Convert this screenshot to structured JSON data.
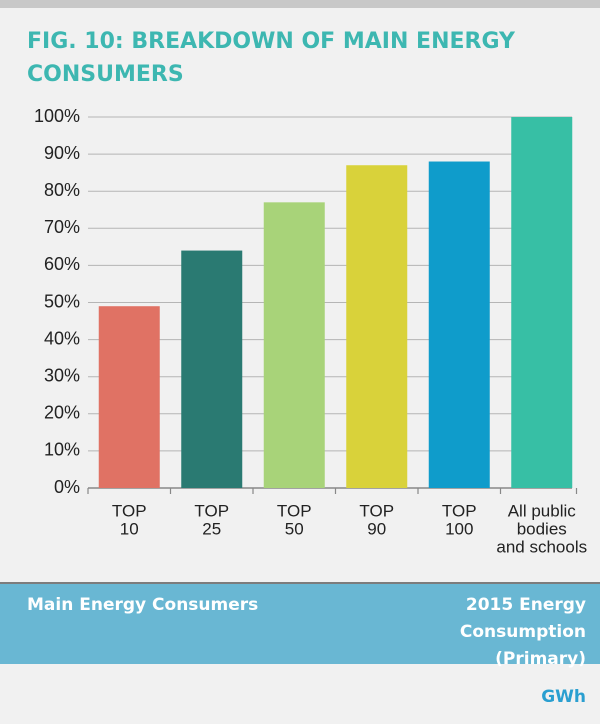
{
  "chart_data": {
    "type": "bar",
    "title": [
      "FIG. 10: BREAKDOWN OF MAIN ENERGY",
      "CONSUMERS"
    ],
    "categories": [
      [
        "TOP",
        "10"
      ],
      [
        "TOP",
        "25"
      ],
      [
        "TOP",
        "50"
      ],
      [
        "TOP",
        "90"
      ],
      [
        "TOP",
        "100"
      ],
      [
        "All public",
        "bodies",
        "and schools"
      ]
    ],
    "values": [
      49,
      64,
      77,
      87,
      88,
      100
    ],
    "colors": [
      "#e07264",
      "#2a7a72",
      "#a8d379",
      "#d9d23a",
      "#0f9ccb",
      "#37bfa5"
    ],
    "ylim": [
      0,
      100
    ],
    "yticks": [
      {
        "value": 0,
        "label": "0%"
      },
      {
        "value": 10,
        "label": "10%"
      },
      {
        "value": 20,
        "label": "20%"
      },
      {
        "value": 30,
        "label": "30%"
      },
      {
        "value": 40,
        "label": "40%"
      },
      {
        "value": 50,
        "label": "50%"
      },
      {
        "value": 60,
        "label": "60%"
      },
      {
        "value": 70,
        "label": "70%"
      },
      {
        "value": 80,
        "label": "80%"
      },
      {
        "value": 90,
        "label": "90%"
      },
      {
        "value": 100,
        "label": "100%"
      }
    ],
    "grid": true
  },
  "table": {
    "header_left": "Main Energy Consumers",
    "header_right": [
      "2015 Energy",
      "Consumption",
      "(Primary)"
    ],
    "unit": "GWh"
  }
}
